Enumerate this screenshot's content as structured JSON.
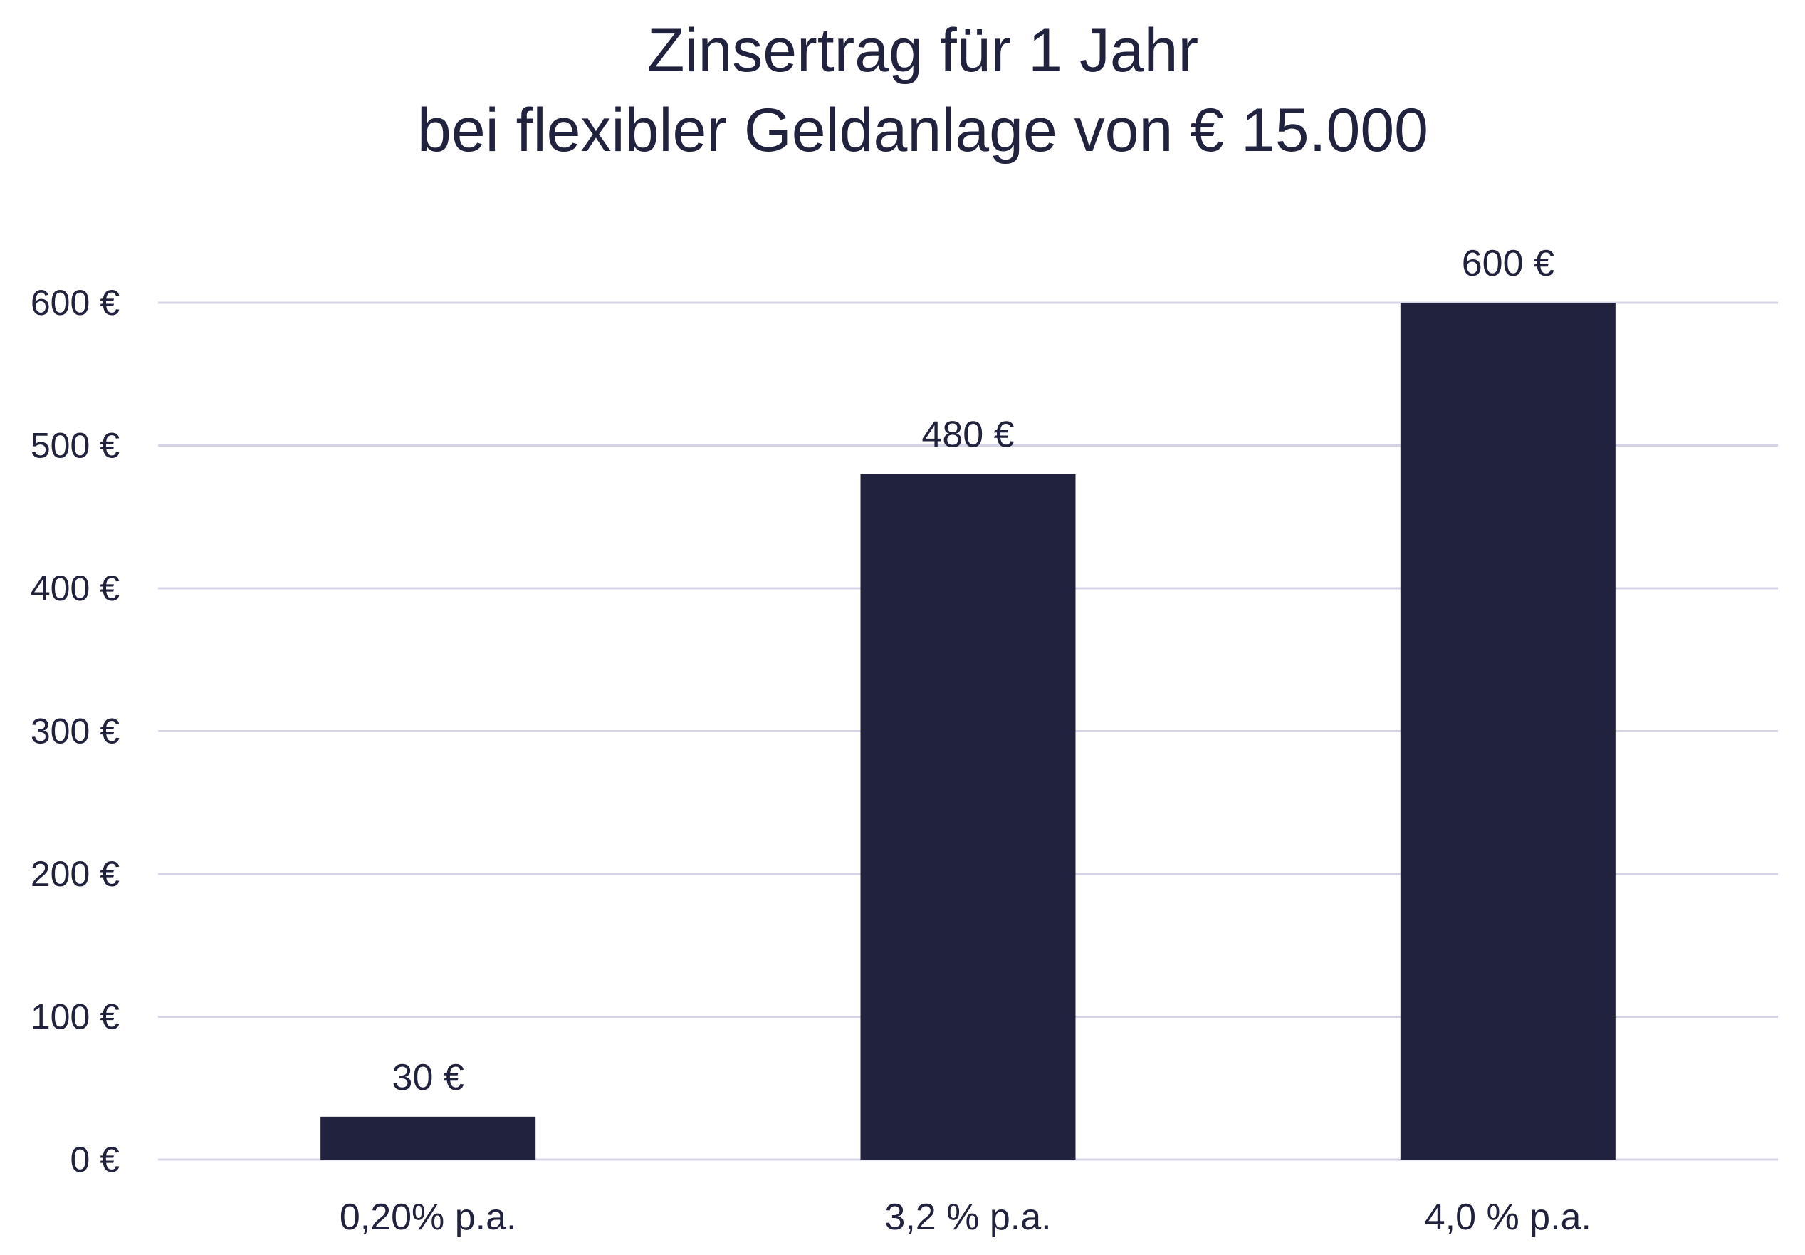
{
  "chart_data": {
    "type": "bar",
    "title": "Zinsertrag für 1 Jahr",
    "subtitle": "bei flexibler Geldanlage von € 15.000",
    "categories": [
      "0,20% p.a.",
      "3,2 % p.a.",
      "4,0 % p.a."
    ],
    "values": [
      30,
      480,
      600
    ],
    "data_labels": [
      "30 €",
      "480 €",
      "600 €"
    ],
    "ylim": [
      0,
      600
    ],
    "yticks": [
      0,
      100,
      200,
      300,
      400,
      500,
      600
    ],
    "ytick_labels": [
      "0 €",
      "100 €",
      "200 €",
      "300 €",
      "400 €",
      "500 €",
      "600 €"
    ],
    "grid": true,
    "legend": "none",
    "xlabel": "",
    "ylabel": "",
    "colors": {
      "bar": "#21223d",
      "text": "#21223d",
      "grid": "#d4d4e6"
    }
  }
}
